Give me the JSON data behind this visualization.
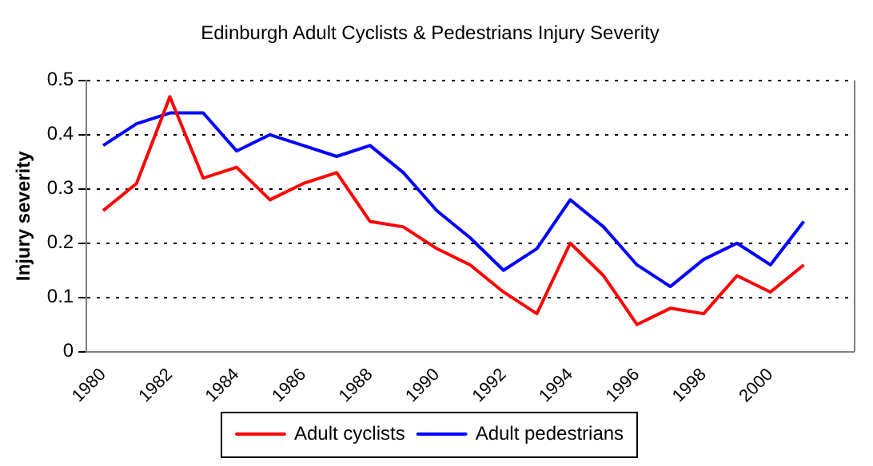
{
  "chart_data": {
    "type": "line",
    "title": "Edinburgh Adult Cyclists & Pedestrians Injury Severity",
    "ylabel": "Injury severity",
    "categories": [
      "1980",
      null,
      "1982",
      null,
      "1984",
      null,
      "1986",
      null,
      "1988",
      null,
      "1990",
      null,
      "1992",
      null,
      "1994",
      null,
      "1996",
      null,
      "1998",
      null,
      "2000",
      null,
      null
    ],
    "series": [
      {
        "name": "Adult cyclists",
        "color": "#ff0000",
        "values": [
          0.26,
          0.31,
          0.47,
          0.32,
          0.34,
          0.28,
          0.31,
          0.33,
          0.24,
          0.23,
          0.19,
          0.16,
          0.11,
          0.07,
          0.2,
          0.14,
          0.05,
          0.08,
          0.07,
          0.14,
          0.11,
          0.16,
          null
        ]
      },
      {
        "name": "Adult pedestrians",
        "color": "#0000ff",
        "values": [
          0.38,
          0.42,
          0.44,
          0.44,
          0.37,
          0.4,
          0.38,
          0.36,
          0.38,
          0.33,
          0.26,
          0.21,
          0.15,
          0.19,
          0.28,
          0.23,
          0.16,
          0.12,
          0.17,
          0.2,
          0.16,
          0.24,
          null
        ]
      }
    ],
    "ylim": [
      0,
      0.5
    ],
    "yticks": [
      0,
      0.1,
      0.2,
      0.3,
      0.4,
      0.5
    ],
    "grid": "y",
    "legend": "bottom",
    "marker": "none",
    "line_style": "solid"
  }
}
